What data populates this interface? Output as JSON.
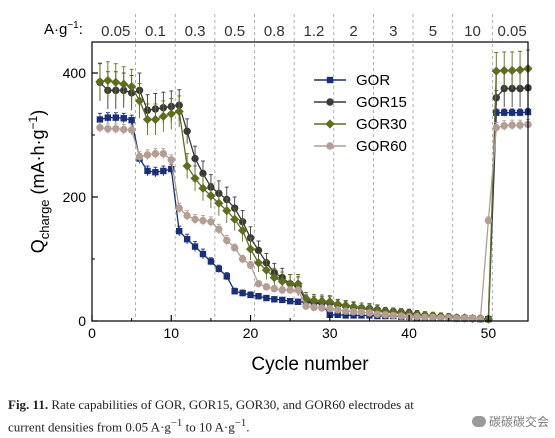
{
  "chart_data": {
    "type": "line",
    "xlabel": "Cycle number",
    "ylabel_main": "Q",
    "ylabel_sub": "charge",
    "ylabel_unit": "(mA·h·g",
    "ylabel_unit_sup": "−1",
    "ylabel_unit_end": ")",
    "xlim": [
      0,
      55
    ],
    "ylim": [
      0,
      450
    ],
    "xticks": [
      0,
      10,
      20,
      30,
      40,
      50
    ],
    "yticks": [
      0,
      200,
      400
    ],
    "xtick_labels": [
      "0",
      "10",
      "20",
      "30",
      "40",
      "50"
    ],
    "ytick_labels": [
      "0",
      "200",
      "400"
    ],
    "current_density_unit": "A·g",
    "current_density_unit_sup": "−1",
    "current_density_unit_end": ":",
    "current_densities": [
      {
        "label": "0.05",
        "center": 3
      },
      {
        "label": "0.1",
        "center": 8
      },
      {
        "label": "0.3",
        "center": 13
      },
      {
        "label": "0.5",
        "center": 18
      },
      {
        "label": "0.8",
        "center": 23
      },
      {
        "label": "1.2",
        "center": 28
      },
      {
        "label": "2",
        "center": 33
      },
      {
        "label": "3",
        "center": 38
      },
      {
        "label": "5",
        "center": 43
      },
      {
        "label": "10",
        "center": 48
      },
      {
        "label": "0.05",
        "center": 53
      }
    ],
    "segment_boundaries": [
      5.5,
      10.5,
      15.5,
      20.5,
      25.5,
      30.5,
      35.5,
      40.5,
      45.5,
      50.5
    ],
    "legend_position": "top-center",
    "series": [
      {
        "name": "GOR",
        "color": "#1a2f7a",
        "marker": "square",
        "x": [
          1,
          2,
          3,
          4,
          5,
          6,
          7,
          8,
          9,
          10,
          11,
          12,
          13,
          14,
          15,
          16,
          17,
          18,
          19,
          20,
          21,
          22,
          23,
          24,
          25,
          26,
          27,
          28,
          29,
          30,
          31,
          32,
          33,
          34,
          35,
          36,
          37,
          38,
          39,
          40,
          41,
          42,
          43,
          44,
          45,
          46,
          47,
          48,
          49,
          50,
          51,
          52,
          53,
          54,
          55
        ],
        "y": [
          325,
          328,
          328,
          327,
          324,
          262,
          242,
          240,
          242,
          245,
          145,
          132,
          120,
          108,
          96,
          84,
          72,
          48,
          45,
          42,
          40,
          37,
          35,
          34,
          32,
          31,
          30,
          29,
          28,
          10,
          10,
          9,
          9,
          9,
          9,
          8,
          8,
          8,
          7,
          7,
          6,
          6,
          6,
          5,
          5,
          4,
          4,
          4,
          3,
          3,
          336,
          336,
          336,
          336,
          337
        ],
        "err": [
          10,
          8,
          8,
          8,
          8,
          8,
          8,
          8,
          8,
          8,
          8,
          8,
          8,
          8,
          6,
          6,
          6,
          5,
          5,
          5,
          4,
          4,
          4,
          4,
          4,
          4,
          4,
          4,
          4,
          3,
          3,
          3,
          3,
          3,
          3,
          3,
          3,
          3,
          3,
          3,
          3,
          3,
          3,
          3,
          3,
          3,
          3,
          3,
          3,
          3,
          6,
          6,
          6,
          6,
          6
        ]
      },
      {
        "name": "GOR15",
        "color": "#3a3a3a",
        "marker": "circle",
        "x": [
          1,
          2,
          3,
          4,
          5,
          6,
          7,
          8,
          9,
          10,
          11,
          12,
          13,
          14,
          15,
          16,
          17,
          18,
          19,
          20,
          21,
          22,
          23,
          24,
          25,
          26,
          27,
          28,
          29,
          30,
          31,
          32,
          33,
          34,
          35,
          36,
          37,
          38,
          39,
          40,
          41,
          42,
          43,
          44,
          45,
          46,
          47,
          48,
          49,
          50,
          51,
          52,
          53,
          54,
          55
        ],
        "y": [
          385,
          372,
          372,
          372,
          368,
          372,
          340,
          342,
          344,
          346,
          348,
          306,
          262,
          238,
          216,
          206,
          196,
          182,
          160,
          134,
          114,
          94,
          78,
          70,
          60,
          56,
          32,
          30,
          29,
          29,
          26,
          24,
          22,
          21,
          20,
          18,
          16,
          15,
          14,
          13,
          11,
          9,
          8,
          7,
          6,
          5,
          4,
          4,
          3,
          3,
          360,
          375,
          375,
          375,
          376
        ],
        "err": [
          30,
          30,
          30,
          28,
          28,
          28,
          25,
          25,
          25,
          25,
          25,
          20,
          20,
          20,
          20,
          20,
          20,
          18,
          18,
          18,
          15,
          15,
          15,
          15,
          15,
          15,
          10,
          10,
          10,
          10,
          8,
          8,
          8,
          8,
          8,
          8,
          6,
          6,
          6,
          6,
          6,
          6,
          6,
          6,
          6,
          5,
          5,
          5,
          5,
          5,
          12,
          30,
          30,
          30,
          30
        ]
      },
      {
        "name": "GOR30",
        "color": "#5f6d1e",
        "marker": "diamond",
        "x": [
          1,
          2,
          3,
          4,
          5,
          6,
          7,
          8,
          9,
          10,
          11,
          12,
          13,
          14,
          15,
          16,
          17,
          18,
          19,
          20,
          21,
          22,
          23,
          24,
          25,
          26,
          27,
          28,
          29,
          30,
          31,
          32,
          33,
          34,
          35,
          36,
          37,
          38,
          39,
          40,
          41,
          42,
          43,
          44,
          45,
          46,
          47,
          48,
          49,
          50,
          51,
          52,
          53,
          54,
          55
        ],
        "y": [
          386,
          388,
          385,
          382,
          378,
          355,
          325,
          325,
          330,
          334,
          338,
          250,
          230,
          214,
          202,
          190,
          178,
          164,
          146,
          116,
          94,
          82,
          70,
          64,
          60,
          60,
          36,
          33,
          32,
          31,
          27,
          25,
          23,
          21,
          19,
          17,
          15,
          14,
          13,
          11,
          10,
          9,
          8,
          7,
          6,
          5,
          5,
          4,
          4,
          3,
          403,
          404,
          404,
          405,
          407
        ],
        "err": [
          30,
          30,
          30,
          28,
          28,
          28,
          25,
          25,
          25,
          25,
          25,
          20,
          20,
          20,
          20,
          20,
          20,
          18,
          18,
          18,
          15,
          15,
          15,
          15,
          15,
          15,
          10,
          10,
          10,
          10,
          8,
          8,
          8,
          8,
          8,
          8,
          6,
          6,
          6,
          6,
          6,
          6,
          6,
          6,
          6,
          5,
          5,
          5,
          5,
          5,
          30,
          30,
          30,
          30,
          30
        ]
      },
      {
        "name": "GOR60",
        "color": "#b49e94",
        "marker": "circle",
        "x": [
          1,
          2,
          3,
          4,
          5,
          6,
          7,
          8,
          9,
          10,
          11,
          12,
          13,
          14,
          15,
          16,
          17,
          18,
          19,
          20,
          21,
          22,
          23,
          24,
          25,
          26,
          27,
          28,
          29,
          30,
          31,
          32,
          33,
          34,
          35,
          36,
          37,
          38,
          39,
          40,
          41,
          42,
          43,
          44,
          45,
          46,
          47,
          48,
          49,
          50,
          51,
          52,
          53,
          54,
          55
        ],
        "y": [
          312,
          310,
          310,
          309,
          308,
          265,
          268,
          270,
          270,
          260,
          182,
          170,
          164,
          162,
          160,
          148,
          130,
          118,
          100,
          90,
          60,
          55,
          52,
          50,
          50,
          50,
          24,
          22,
          21,
          20,
          18,
          16,
          15,
          14,
          13,
          11,
          10,
          9,
          8,
          7,
          7,
          6,
          6,
          5,
          5,
          4,
          4,
          4,
          3,
          162,
          312,
          315,
          316,
          316,
          317
        ],
        "err": [
          8,
          8,
          8,
          8,
          8,
          8,
          8,
          8,
          8,
          8,
          8,
          8,
          8,
          8,
          8,
          8,
          8,
          6,
          6,
          6,
          5,
          5,
          5,
          5,
          5,
          5,
          4,
          4,
          4,
          4,
          3,
          3,
          3,
          3,
          3,
          3,
          3,
          3,
          3,
          3,
          3,
          3,
          3,
          3,
          3,
          3,
          3,
          3,
          3,
          6,
          8,
          8,
          8,
          8,
          8
        ]
      }
    ]
  },
  "caption": {
    "label": "Fig. 11.",
    "text_1": "Rate capabilities of GOR, GOR15, GOR30, and GOR60 electrodes at",
    "text_2": "current densities from 0.05 A·g",
    "sup_1": "−1",
    "text_3": " to 10 A·g",
    "sup_2": "−1",
    "text_4": "."
  },
  "watermark": {
    "text": "碳碳碳交会"
  }
}
